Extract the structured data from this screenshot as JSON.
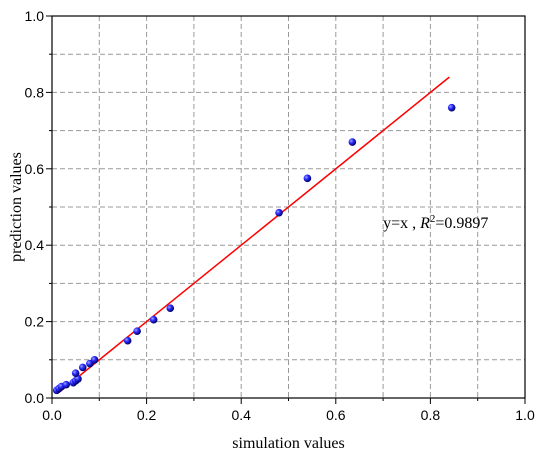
{
  "chart_data": {
    "type": "scatter",
    "xlabel": "simulation values",
    "ylabel": "prediction values",
    "xlim": [
      0.0,
      1.0
    ],
    "ylim": [
      0.0,
      1.0
    ],
    "x_ticks": [
      "0.0",
      "0.2",
      "0.4",
      "0.6",
      "0.8",
      "1.0"
    ],
    "y_ticks": [
      "0.0",
      "0.2",
      "0.4",
      "0.6",
      "0.8",
      "1.0"
    ],
    "grid": true,
    "grid_style": "dashed",
    "points": [
      {
        "x": 0.01,
        "y": 0.02
      },
      {
        "x": 0.015,
        "y": 0.025
      },
      {
        "x": 0.02,
        "y": 0.03
      },
      {
        "x": 0.03,
        "y": 0.035
      },
      {
        "x": 0.045,
        "y": 0.04
      },
      {
        "x": 0.05,
        "y": 0.045
      },
      {
        "x": 0.055,
        "y": 0.05
      },
      {
        "x": 0.05,
        "y": 0.065
      },
      {
        "x": 0.065,
        "y": 0.08
      },
      {
        "x": 0.08,
        "y": 0.09
      },
      {
        "x": 0.09,
        "y": 0.1
      },
      {
        "x": 0.16,
        "y": 0.15
      },
      {
        "x": 0.18,
        "y": 0.175
      },
      {
        "x": 0.215,
        "y": 0.205
      },
      {
        "x": 0.25,
        "y": 0.235
      },
      {
        "x": 0.48,
        "y": 0.485
      },
      {
        "x": 0.54,
        "y": 0.575
      },
      {
        "x": 0.635,
        "y": 0.67
      },
      {
        "x": 0.845,
        "y": 0.76
      }
    ],
    "fit_line": {
      "x": [
        0.015,
        0.84
      ],
      "y": [
        0.015,
        0.84
      ]
    },
    "annotation": {
      "prefix": "y=x , ",
      "r_symbol": "R",
      "superscript": "2",
      "value": "=0.9897",
      "x": 0.7,
      "y": 0.445
    },
    "colors": {
      "points": "#1a1aff",
      "fit_line": "#ff0000",
      "grid": "#999999",
      "axes": "#000000"
    }
  }
}
